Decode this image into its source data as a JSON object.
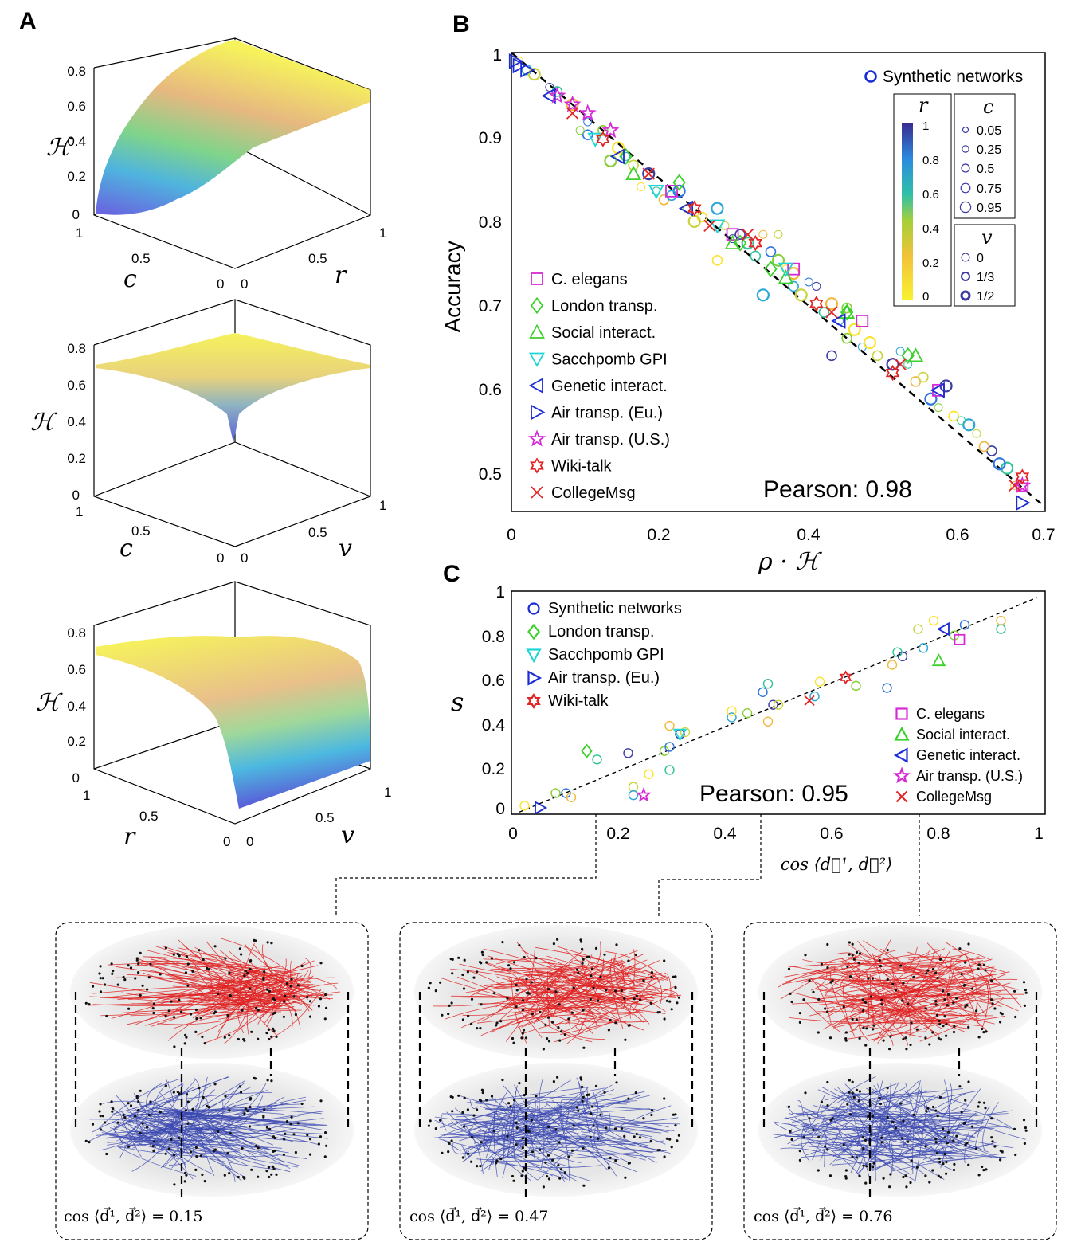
{
  "panels": {
    "a": "A",
    "b": "B",
    "c": "C"
  },
  "chart_data": [
    {
      "id": "A1",
      "type": "surface3d",
      "zlabel": "ℋ",
      "xlabel": "c",
      "ylabel": "r",
      "zticks": [
        "0",
        "0.2",
        "0.4",
        "0.6",
        "0.8"
      ],
      "xticks": [
        "1",
        "0.5",
        "0"
      ],
      "yticks": [
        "0",
        "0.5",
        "1"
      ],
      "zlim": [
        0,
        0.8
      ]
    },
    {
      "id": "A2",
      "type": "surface3d",
      "zlabel": "ℋ",
      "xlabel": "c",
      "ylabel": "v",
      "zticks": [
        "0",
        "0.2",
        "0.4",
        "0.6",
        "0.8"
      ],
      "xticks": [
        "1",
        "0.5",
        "0"
      ],
      "yticks": [
        "0",
        "0.5",
        "1"
      ],
      "zlim": [
        0,
        0.8
      ]
    },
    {
      "id": "A3",
      "type": "surface3d",
      "zlabel": "ℋ",
      "xlabel": "r",
      "ylabel": "v",
      "zticks": [
        "0",
        "0.2",
        "0.4",
        "0.6",
        "0.8"
      ],
      "xticks": [
        "1",
        "0.5",
        "0"
      ],
      "yticks": [
        "0",
        "0.5",
        "1"
      ],
      "zlim": [
        0,
        0.8
      ]
    },
    {
      "id": "B",
      "type": "scatter",
      "xlabel": "ρ · ℋ",
      "ylabel": "Accuracy",
      "xlim": [
        0,
        0.7
      ],
      "ylim": [
        0.47,
        1.0
      ],
      "xticks": [
        "0",
        "0.2",
        "0.4",
        "0.6",
        "0.7"
      ],
      "yticks": [
        "0.5",
        "0.6",
        "0.7",
        "0.8",
        "0.9",
        "1"
      ],
      "pearson": "Pearson: 0.98",
      "fit_line": {
        "x": [
          0.0,
          0.7
        ],
        "y": [
          1.0,
          0.475
        ]
      },
      "synthetic_label": "Synthetic networks",
      "colorbar": {
        "label": "r",
        "ticks": [
          "1",
          "0.8",
          "0.6",
          "0.4",
          "0.2",
          "0"
        ]
      },
      "c_legend": {
        "label": "c",
        "values": [
          "0.05",
          "0.25",
          "0.5",
          "0.75",
          "0.95"
        ]
      },
      "v_legend": {
        "label": "v",
        "values": [
          "0",
          "1/3",
          "1/2"
        ]
      },
      "synthetic_points": [
        [
          0.01,
          0.99
        ],
        [
          0.02,
          0.98
        ],
        [
          0.03,
          0.975
        ],
        [
          0.05,
          0.96
        ],
        [
          0.06,
          0.955
        ],
        [
          0.08,
          0.94
        ],
        [
          0.1,
          0.92
        ],
        [
          0.12,
          0.91
        ],
        [
          0.14,
          0.89
        ],
        [
          0.15,
          0.88
        ],
        [
          0.16,
          0.87
        ],
        [
          0.18,
          0.86
        ],
        [
          0.19,
          0.84
        ],
        [
          0.2,
          0.83
        ],
        [
          0.22,
          0.84
        ],
        [
          0.23,
          0.82
        ],
        [
          0.25,
          0.81
        ],
        [
          0.27,
          0.82
        ],
        [
          0.28,
          0.8
        ],
        [
          0.3,
          0.79
        ],
        [
          0.31,
          0.78
        ],
        [
          0.33,
          0.79
        ],
        [
          0.34,
          0.77
        ],
        [
          0.35,
          0.76
        ],
        [
          0.36,
          0.75
        ],
        [
          0.37,
          0.73
        ],
        [
          0.38,
          0.72
        ],
        [
          0.4,
          0.73
        ],
        [
          0.41,
          0.7
        ],
        [
          0.42,
          0.71
        ],
        [
          0.43,
          0.69
        ],
        [
          0.44,
          0.67
        ],
        [
          0.45,
          0.68
        ],
        [
          0.46,
          0.66
        ],
        [
          0.48,
          0.65
        ],
        [
          0.5,
          0.64
        ],
        [
          0.52,
          0.64
        ],
        [
          0.53,
          0.62
        ],
        [
          0.55,
          0.6
        ],
        [
          0.56,
          0.59
        ],
        [
          0.58,
          0.58
        ],
        [
          0.6,
          0.57
        ],
        [
          0.61,
          0.56
        ],
        [
          0.63,
          0.54
        ],
        [
          0.65,
          0.52
        ],
        [
          0.66,
          0.5
        ],
        [
          0.1,
          0.905
        ],
        [
          0.13,
          0.875
        ],
        [
          0.17,
          0.845
        ],
        [
          0.21,
          0.835
        ],
        [
          0.24,
          0.805
        ],
        [
          0.29,
          0.785
        ],
        [
          0.32,
          0.765
        ],
        [
          0.37,
          0.745
        ],
        [
          0.39,
          0.735
        ],
        [
          0.44,
          0.705
        ],
        [
          0.47,
          0.665
        ],
        [
          0.51,
          0.655
        ],
        [
          0.54,
          0.625
        ],
        [
          0.57,
          0.615
        ],
        [
          0.59,
          0.575
        ],
        [
          0.62,
          0.545
        ],
        [
          0.64,
          0.525
        ],
        [
          0.09,
          0.91
        ],
        [
          0.27,
          0.76
        ],
        [
          0.33,
          0.72
        ],
        [
          0.35,
          0.79
        ],
        [
          0.42,
          0.65
        ]
      ],
      "datasets": [
        {
          "name": "C. elegans",
          "marker": "square",
          "color": "#d62ad6",
          "points": [
            [
              0.21,
              0.84
            ],
            [
              0.29,
              0.79
            ],
            [
              0.37,
              0.75
            ],
            [
              0.46,
              0.69
            ],
            [
              0.56,
              0.61
            ],
            [
              0.67,
              0.5
            ]
          ]
        },
        {
          "name": "London transp.",
          "marker": "diamond",
          "color": "#3ad12a",
          "points": [
            [
              0.15,
              0.88
            ],
            [
              0.22,
              0.85
            ],
            [
              0.3,
              0.78
            ],
            [
              0.34,
              0.75
            ],
            [
              0.44,
              0.7
            ],
            [
              0.52,
              0.65
            ]
          ]
        },
        {
          "name": "Social interact.",
          "marker": "triangle-up",
          "color": "#3ad12a",
          "points": [
            [
              0.16,
              0.86
            ],
            [
              0.29,
              0.78
            ],
            [
              0.36,
              0.74
            ],
            [
              0.44,
              0.7
            ],
            [
              0.53,
              0.65
            ]
          ]
        },
        {
          "name": "Sacchpomb GPI",
          "marker": "triangle-down",
          "color": "#1fd6d6",
          "points": [
            [
              0.11,
              0.9
            ],
            [
              0.19,
              0.84
            ],
            [
              0.27,
              0.8
            ],
            [
              0.36,
              0.75
            ]
          ]
        },
        {
          "name": "Genetic interact.",
          "marker": "triangle-left",
          "color": "#1a2cd6",
          "points": [
            [
              0.05,
              0.95
            ],
            [
              0.14,
              0.88
            ],
            [
              0.23,
              0.82
            ],
            [
              0.43,
              0.69
            ],
            [
              0.56,
              0.61
            ]
          ]
        },
        {
          "name": "Air transp. (Eu.)",
          "marker": "triangle-right",
          "color": "#1a2cd6",
          "points": [
            [
              0.005,
              0.99
            ],
            [
              0.01,
              0.985
            ],
            [
              0.02,
              0.98
            ],
            [
              0.67,
              0.48
            ]
          ]
        },
        {
          "name": "Air transp. (U.S.)",
          "marker": "star",
          "color": "#d62ad6",
          "points": [
            [
              0.06,
              0.95
            ],
            [
              0.08,
              0.94
            ],
            [
              0.1,
              0.93
            ],
            [
              0.13,
              0.91
            ],
            [
              0.67,
              0.5
            ]
          ]
        },
        {
          "name": "Wiki-talk",
          "marker": "hexagram",
          "color": "#e32424",
          "points": [
            [
              0.12,
              0.9
            ],
            [
              0.24,
              0.82
            ],
            [
              0.32,
              0.78
            ],
            [
              0.4,
              0.71
            ],
            [
              0.5,
              0.63
            ],
            [
              0.67,
              0.51
            ]
          ]
        },
        {
          "name": "CollegeMsg",
          "marker": "x",
          "color": "#e32424",
          "points": [
            [
              0.08,
              0.93
            ],
            [
              0.18,
              0.86
            ],
            [
              0.26,
              0.8
            ],
            [
              0.31,
              0.79
            ],
            [
              0.42,
              0.7
            ],
            [
              0.51,
              0.64
            ],
            [
              0.66,
              0.5
            ]
          ]
        }
      ]
    },
    {
      "id": "C",
      "type": "scatter",
      "xlabel": "cos ⟨d⃗¹, d⃗²⟩",
      "ylabel": "s",
      "xlim": [
        0,
        1
      ],
      "ylim": [
        0,
        1
      ],
      "xticks": [
        "0",
        "0.2",
        "0.4",
        "0.6",
        "0.8",
        "1"
      ],
      "yticks": [
        "0",
        "0.2",
        "0.4",
        "0.6",
        "0.8",
        "1"
      ],
      "pearson": "Pearson: 0.95",
      "fit_line": {
        "x": [
          0.0,
          1.0
        ],
        "y": [
          -0.02,
          1.0
        ]
      },
      "synthetic_points": [
        [
          0.01,
          0.01
        ],
        [
          0.07,
          0.07
        ],
        [
          0.09,
          0.07
        ],
        [
          0.1,
          0.05
        ],
        [
          0.15,
          0.23
        ],
        [
          0.21,
          0.26
        ],
        [
          0.22,
          0.1
        ],
        [
          0.22,
          0.06
        ],
        [
          0.25,
          0.16
        ],
        [
          0.28,
          0.27
        ],
        [
          0.29,
          0.29
        ],
        [
          0.29,
          0.39
        ],
        [
          0.29,
          0.18
        ],
        [
          0.31,
          0.35
        ],
        [
          0.32,
          0.36
        ],
        [
          0.41,
          0.43
        ],
        [
          0.41,
          0.46
        ],
        [
          0.44,
          0.45
        ],
        [
          0.47,
          0.55
        ],
        [
          0.48,
          0.41
        ],
        [
          0.48,
          0.59
        ],
        [
          0.49,
          0.49
        ],
        [
          0.5,
          0.49
        ],
        [
          0.57,
          0.53
        ],
        [
          0.58,
          0.6
        ],
        [
          0.65,
          0.58
        ],
        [
          0.71,
          0.57
        ],
        [
          0.72,
          0.68
        ],
        [
          0.73,
          0.74
        ],
        [
          0.74,
          0.72
        ],
        [
          0.77,
          0.85
        ],
        [
          0.78,
          0.76
        ],
        [
          0.8,
          0.89
        ],
        [
          0.84,
          0.82
        ],
        [
          0.86,
          0.87
        ],
        [
          0.93,
          0.89
        ],
        [
          0.93,
          0.85
        ]
      ],
      "datasets": [
        {
          "name": "Synthetic networks",
          "marker": "circle",
          "color": "#1a2cd6",
          "points": []
        },
        {
          "name": "London transp.",
          "marker": "diamond",
          "color": "#3ad12a",
          "points": [
            [
              0.13,
              0.27
            ]
          ]
        },
        {
          "name": "Sacchpomb GPI",
          "marker": "triangle-down",
          "color": "#1fd6d6",
          "points": [
            [
              0.31,
              0.35
            ]
          ]
        },
        {
          "name": "Air transp. (Eu.)",
          "marker": "triangle-right",
          "color": "#1a2cd6",
          "points": [
            [
              0.04,
              0.0
            ]
          ]
        },
        {
          "name": "Wiki-talk",
          "marker": "hexagram",
          "color": "#e32424",
          "points": [
            [
              0.63,
              0.62
            ]
          ]
        },
        {
          "name": "C. elegans",
          "marker": "square",
          "color": "#d62ad6",
          "points": [
            [
              0.85,
              0.8
            ]
          ]
        },
        {
          "name": "Social interact.",
          "marker": "triangle-up",
          "color": "#3ad12a",
          "points": [
            [
              0.81,
              0.7
            ]
          ]
        },
        {
          "name": "Genetic interact.",
          "marker": "triangle-left",
          "color": "#1a2cd6",
          "points": [
            [
              0.82,
              0.85
            ]
          ]
        },
        {
          "name": "Air transp. (U.S.)",
          "marker": "star",
          "color": "#d62ad6",
          "points": [
            [
              0.24,
              0.06
            ]
          ]
        },
        {
          "name": "CollegeMsg",
          "marker": "x",
          "color": "#e32424",
          "points": [
            [
              0.56,
              0.51
            ]
          ]
        }
      ]
    }
  ],
  "network_panels": [
    {
      "caption": "cos ⟨d⃗¹, d⃗²⟩ = 0.15",
      "value": 0.15
    },
    {
      "caption": "cos ⟨d⃗¹, d⃗²⟩ = 0.47",
      "value": 0.47
    },
    {
      "caption": "cos ⟨d⃗¹, d⃗²⟩ = 0.76",
      "value": 0.76
    }
  ],
  "colors": {
    "top_layer": "#e02020",
    "bottom_layer": "#3a47b0",
    "surface_high": "#f7f25a",
    "surface_low": "#5a5ed8"
  }
}
